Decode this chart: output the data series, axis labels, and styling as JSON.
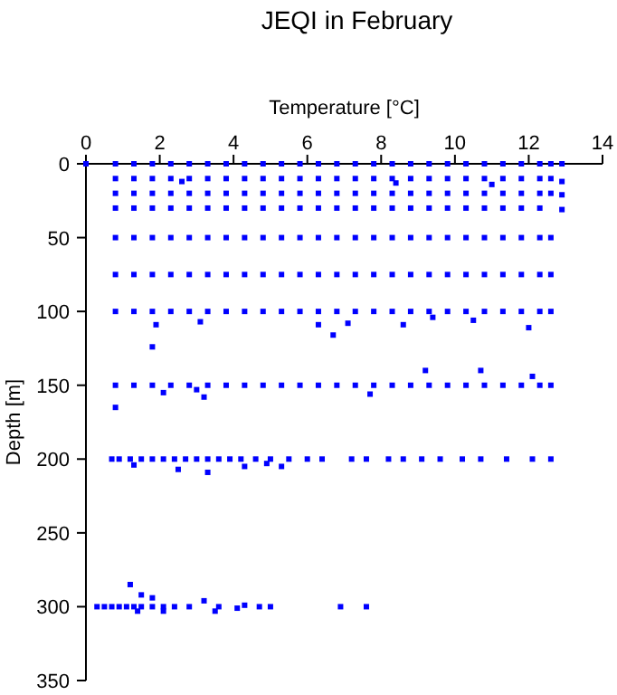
{
  "chart_data": {
    "type": "scatter",
    "title": "JEQI in February",
    "xlabel": "Temperature [°C]",
    "ylabel": "Depth [m]",
    "xlim": [
      0,
      14
    ],
    "xticks": [
      0,
      2,
      4,
      6,
      8,
      10,
      12,
      14
    ],
    "ylim": [
      350,
      0
    ],
    "yticks": [
      0,
      50,
      100,
      150,
      200,
      250,
      300,
      350
    ],
    "marker": "square",
    "grid": false,
    "series": [
      {
        "color": "#0000ff",
        "x": [
          0,
          0.8,
          1.3,
          1.8,
          2.3,
          2.8,
          3.3,
          3.8,
          4.3,
          4.8,
          5.3,
          5.8,
          6.3,
          6.8,
          7.3,
          7.8,
          8.3,
          8.8,
          9.3,
          9.8,
          10.3,
          10.8,
          11.3,
          11.8,
          12.3,
          12.6,
          12.9
        ],
        "values": [
          0,
          0,
          0,
          0,
          0,
          0,
          0,
          0,
          0,
          0,
          0,
          0,
          0,
          0,
          0,
          0,
          0,
          0,
          0,
          0,
          0,
          0,
          0,
          0,
          0,
          0,
          0
        ]
      },
      {
        "color": "#0000ff",
        "x": [
          0.8,
          1.3,
          1.8,
          2.3,
          2.8,
          3.3,
          3.8,
          4.3,
          4.8,
          5.3,
          5.8,
          6.3,
          6.8,
          7.3,
          7.8,
          8.3,
          8.8,
          9.3,
          9.8,
          10.3,
          10.8,
          11.3,
          11.8,
          12.3,
          12.6,
          12.9,
          2.6,
          8.4,
          11
        ],
        "values": [
          10,
          10,
          10,
          10,
          10,
          10,
          10,
          10,
          10,
          10,
          10,
          10,
          10,
          10,
          10,
          10,
          10,
          10,
          10,
          10,
          10,
          10,
          10,
          10,
          10,
          12,
          12,
          13,
          14
        ]
      },
      {
        "color": "#0000ff",
        "x": [
          0.8,
          1.3,
          1.8,
          2.3,
          2.8,
          3.3,
          3.8,
          4.3,
          4.8,
          5.3,
          5.8,
          6.3,
          6.8,
          7.3,
          7.8,
          8.3,
          8.8,
          9.3,
          9.8,
          10.3,
          10.8,
          11.3,
          11.8,
          12.3,
          12.6,
          12.9
        ],
        "values": [
          20,
          20,
          20,
          20,
          20,
          20,
          20,
          20,
          20,
          20,
          20,
          20,
          20,
          20,
          20,
          20,
          20,
          20,
          20,
          20,
          20,
          20,
          20,
          20,
          20,
          21
        ]
      },
      {
        "color": "#0000ff",
        "x": [
          0.8,
          1.3,
          1.8,
          2.3,
          2.8,
          3.3,
          3.8,
          4.3,
          4.8,
          5.3,
          5.8,
          6.3,
          6.8,
          7.3,
          7.8,
          8.3,
          8.8,
          9.3,
          9.8,
          10.3,
          10.8,
          11.3,
          11.8,
          12.3,
          12.9
        ],
        "values": [
          30,
          30,
          30,
          30,
          30,
          30,
          30,
          30,
          30,
          30,
          30,
          30,
          30,
          30,
          30,
          30,
          30,
          30,
          30,
          30,
          30,
          30,
          30,
          30,
          31
        ]
      },
      {
        "color": "#0000ff",
        "x": [
          0.8,
          1.3,
          1.8,
          2.3,
          2.8,
          3.3,
          3.8,
          4.3,
          4.8,
          5.3,
          5.8,
          6.3,
          6.8,
          7.3,
          7.8,
          8.3,
          8.8,
          9.3,
          9.8,
          10.3,
          10.8,
          11.3,
          11.8,
          12.3,
          12.6
        ],
        "values": [
          50,
          50,
          50,
          50,
          50,
          50,
          50,
          50,
          50,
          50,
          50,
          50,
          50,
          50,
          50,
          50,
          50,
          50,
          50,
          50,
          50,
          50,
          50,
          50,
          50
        ]
      },
      {
        "color": "#0000ff",
        "x": [
          0.8,
          1.3,
          1.8,
          2.3,
          2.8,
          3.3,
          3.8,
          4.3,
          4.8,
          5.3,
          5.8,
          6.3,
          6.8,
          7.3,
          7.8,
          8.3,
          8.8,
          9.3,
          9.8,
          10.3,
          10.8,
          11.3,
          11.8,
          12.3,
          12.6
        ],
        "values": [
          75,
          75,
          75,
          75,
          75,
          75,
          75,
          75,
          75,
          75,
          75,
          75,
          75,
          75,
          75,
          75,
          75,
          75,
          75,
          75,
          75,
          75,
          75,
          75,
          75
        ]
      },
      {
        "color": "#0000ff",
        "x": [
          0.8,
          1.3,
          1.8,
          2.3,
          2.8,
          3.3,
          3.8,
          4.3,
          4.8,
          5.3,
          5.8,
          6.3,
          6.8,
          7.3,
          7.8,
          8.3,
          8.8,
          9.3,
          9.8,
          10.3,
          10.8,
          11.3,
          11.8,
          12.3,
          12.6,
          1.9,
          3.1,
          6.3,
          7.1,
          6.7,
          8.6,
          9.4,
          10.5,
          12
        ],
        "values": [
          100,
          100,
          100,
          100,
          100,
          100,
          100,
          100,
          100,
          100,
          100,
          100,
          100,
          100,
          100,
          100,
          100,
          100,
          100,
          100,
          100,
          100,
          100,
          100,
          100,
          109,
          107,
          109,
          108,
          116,
          109,
          104,
          106,
          111
        ]
      },
      {
        "color": "#0000ff",
        "x": [
          0.8,
          1.3,
          1.8,
          2.3,
          2.8,
          3.3,
          3.8,
          4.3,
          4.8,
          5.3,
          5.8,
          6.3,
          6.8,
          7.3,
          7.8,
          8.3,
          8.8,
          9.3,
          9.8,
          10.3,
          10.8,
          11.3,
          11.8,
          12.3,
          12.6,
          1.8,
          0.8,
          9.2,
          10.7,
          12.1,
          2.1,
          3,
          7.7,
          3.2
        ],
        "values": [
          150,
          150,
          150,
          150,
          150,
          150,
          150,
          150,
          150,
          150,
          150,
          150,
          150,
          150,
          150,
          150,
          150,
          150,
          150,
          150,
          150,
          150,
          150,
          150,
          150,
          124,
          165,
          140,
          140,
          144,
          155,
          153,
          156,
          158
        ]
      },
      {
        "color": "#0000ff",
        "x": [
          0.7,
          0.9,
          1.2,
          1.5,
          1.8,
          2.1,
          2.4,
          2.7,
          3,
          3.3,
          3.6,
          3.9,
          4.2,
          4.6,
          5,
          5.5,
          6,
          6.4,
          7.2,
          7.6,
          8.2,
          8.6,
          9.1,
          9.6,
          10.2,
          10.7,
          11.4,
          12.1,
          12.6,
          1.3,
          2.5,
          3.3,
          4.3,
          4.9,
          5.3
        ],
        "values": [
          200,
          200,
          200,
          200,
          200,
          200,
          200,
          200,
          200,
          200,
          200,
          200,
          200,
          200,
          200,
          200,
          200,
          200,
          200,
          200,
          200,
          200,
          200,
          200,
          200,
          200,
          200,
          200,
          200,
          204,
          207,
          209,
          205,
          203,
          205
        ]
      },
      {
        "color": "#0000ff",
        "x": [
          0.3,
          0.5,
          0.7,
          0.9,
          1.1,
          1.3,
          1.5,
          1.8,
          2.1,
          2.4,
          2.8,
          3.6,
          4.1,
          4.3,
          4.7,
          5,
          6.9,
          7.6,
          1.2,
          1.5,
          1.8,
          3.2,
          1.4,
          2.1,
          3.5
        ],
        "values": [
          300,
          300,
          300,
          300,
          300,
          300,
          300,
          300,
          300,
          300,
          300,
          300,
          301,
          299,
          300,
          300,
          300,
          300,
          285,
          292,
          294,
          296,
          303,
          303,
          303
        ]
      }
    ]
  }
}
